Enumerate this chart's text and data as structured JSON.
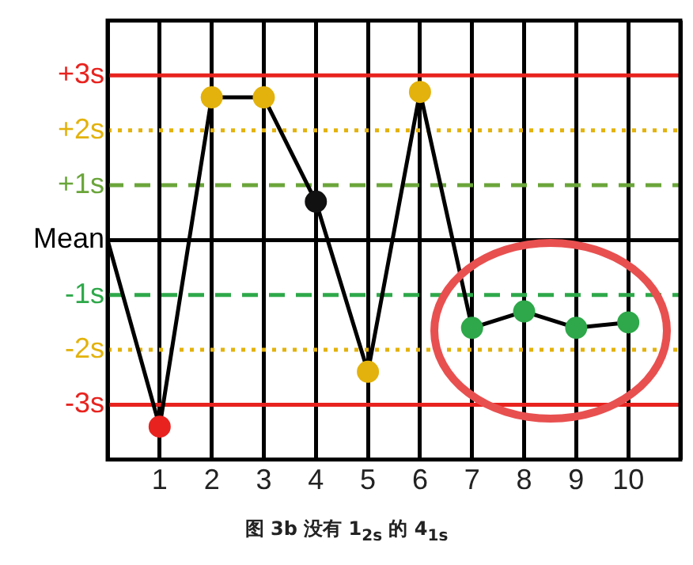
{
  "chart_data": {
    "type": "line",
    "title": "图 3b 没有 1$_{2s}$ 的 4$_{1s}$",
    "x": [
      0,
      1,
      2,
      3,
      4,
      5,
      6,
      7,
      8,
      9,
      10
    ],
    "series": [
      {
        "color": "#000000",
        "values": [
          0,
          -3.4,
          2.6,
          2.6,
          0.7,
          -2.4,
          2.7,
          -1.6,
          -1.3,
          -1.6,
          -1.5
        ],
        "colors": [
          null,
          "#e8231f",
          "#e3b20c",
          "#e3b20c",
          "#111111",
          "#e3b20c",
          "#e3b20c",
          "#2ea84a",
          "#2ea84a",
          "#2ea84a",
          "#2ea84a"
        ]
      }
    ],
    "xlim": [
      0,
      11
    ],
    "xticks": [
      {
        "value": 0,
        "label": null
      },
      1,
      2,
      3,
      4,
      5,
      6,
      7,
      8,
      9,
      10,
      {
        "value": 11,
        "label": null
      }
    ],
    "ylim": [
      -4,
      4
    ],
    "yticks": [
      {
        "value": 3,
        "label": "+3s"
      },
      {
        "value": 2,
        "label": "+2s"
      },
      {
        "value": 1,
        "label": "+1s"
      },
      {
        "value": 0,
        "label": "Mean"
      },
      {
        "value": -1,
        "label": "-1s"
      },
      {
        "value": -2,
        "label": "-2s"
      },
      {
        "value": -3,
        "label": "-3s"
      }
    ],
    "ref_lines": [
      {
        "axis": "y",
        "value": 3,
        "color": "#e8231f",
        "line_style": "solid"
      },
      {
        "axis": "y",
        "value": 2,
        "color": "#e3b20c",
        "line_style": "dotted"
      },
      {
        "axis": "y",
        "value": 1,
        "color": "#6aa53a",
        "line_style": "dashed"
      },
      {
        "axis": "y",
        "value": 0,
        "color": "#000000",
        "line_style": "solid"
      },
      {
        "axis": "y",
        "value": -1,
        "color": "#2ea84a",
        "line_style": "dashed"
      },
      {
        "axis": "y",
        "value": -2,
        "color": "#e3b20c",
        "line_style": "dotted"
      },
      {
        "axis": "y",
        "value": -3,
        "color": "#e8231f",
        "line_style": "solid"
      }
    ],
    "grid": "x",
    "legend": false,
    "marker": "circle",
    "line_style": "solid"
  }
}
